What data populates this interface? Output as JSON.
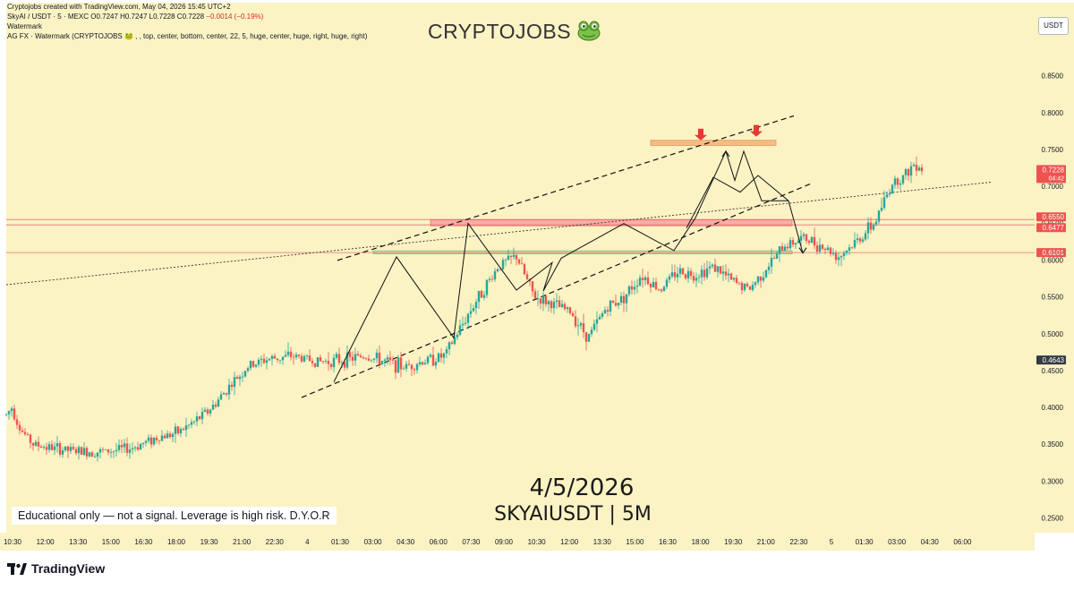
{
  "header": {
    "caption": "Cryptojobs created with TradingView.com, May 04, 2026 15:45 UTC+2",
    "symbol_line": "SkyAI / USDT · 5 · MEXC",
    "ohlc": {
      "o": "O0.7247",
      "h": "H0.7247",
      "l": "L0.7228",
      "c": "C0.7228",
      "chg": "−0.0014 (−0.19%)"
    },
    "watermark_label": "Watermark",
    "indicator_line": "AG FX · Watermark (CRYPTOJOBS 🐸 , , top, center, bottom, center, 22, 5, huge, center, huge, right, huge, right)"
  },
  "watermark": {
    "title": "CRYPTOJOBS",
    "icon": "frog-icon"
  },
  "currency_badge": "USDT",
  "footer": {
    "logo_text": "TradingView",
    "logo_icon": "tradingview-logo-icon"
  },
  "annotations": {
    "date": "4/5/2026",
    "symbol": "SKYAIUSDT | 5M",
    "disclaimer": "Educational only — not a signal. Leverage is high risk. D.Y.O.R"
  },
  "colors": {
    "background": "#fbf3c4",
    "up": "#26a69a",
    "down": "#ef5350",
    "supply_zone": "#f2b27a",
    "resistance_zone": "#f8a0a0",
    "support_zone": "#b6dfa5",
    "arrow": "#e53935"
  },
  "chart_data": {
    "type": "candlestick",
    "symbol": "SKYAIUSDT",
    "timeframe": "5",
    "exchange": "MEXC",
    "ylim": [
      0.23,
      0.88
    ],
    "y_ticks": [
      0.25,
      0.3,
      0.35,
      0.4,
      0.45,
      0.5,
      0.55,
      0.6,
      0.65,
      0.7,
      0.75,
      0.8,
      0.85
    ],
    "y_tick_labels": [
      "0.2500",
      "0.3000",
      "0.3500",
      "0.4000",
      "0.4500",
      "0.5000",
      "0.5500",
      "0.6000",
      "0.6500",
      "0.7000",
      "0.7500",
      "0.8000",
      "0.8500"
    ],
    "x_tick_labels": [
      "10:30",
      "12:00",
      "13:30",
      "15:00",
      "16:30",
      "18:00",
      "19:30",
      "21:00",
      "22:30",
      "4",
      "01:30",
      "03:00",
      "04:30",
      "06:00",
      "07:30",
      "09:00",
      "10:30",
      "12:00",
      "13:30",
      "15:00",
      "16:30",
      "18:00",
      "19:30",
      "21:00",
      "22:30",
      "5",
      "01:30",
      "03:00",
      "04:30",
      "06:00"
    ],
    "price_labels": [
      {
        "text": "0.7228",
        "value": 0.7228,
        "sub": "04:42",
        "kind": "last"
      },
      {
        "text": "0.6550",
        "value": 0.655,
        "kind": "level"
      },
      {
        "text": "0.6477",
        "value": 0.6477,
        "kind": "level"
      },
      {
        "text": "0.6101",
        "value": 0.6101,
        "kind": "level"
      },
      {
        "text": "0.4643",
        "value": 0.4643,
        "kind": "marker"
      }
    ],
    "levels": [
      0.655,
      0.6477,
      0.6101
    ],
    "price_path": [
      [
        0,
        0.39
      ],
      [
        3,
        0.4
      ],
      [
        8,
        0.37
      ],
      [
        15,
        0.35
      ],
      [
        25,
        0.345
      ],
      [
        40,
        0.34
      ],
      [
        55,
        0.34
      ],
      [
        70,
        0.345
      ],
      [
        85,
        0.36
      ],
      [
        95,
        0.365
      ],
      [
        105,
        0.38
      ],
      [
        115,
        0.4
      ],
      [
        125,
        0.43
      ],
      [
        135,
        0.455
      ],
      [
        145,
        0.465
      ],
      [
        160,
        0.47
      ],
      [
        175,
        0.462
      ],
      [
        190,
        0.465
      ],
      [
        200,
        0.47
      ],
      [
        212,
        0.462
      ],
      [
        222,
        0.455
      ],
      [
        232,
        0.462
      ],
      [
        245,
        0.47
      ],
      [
        260,
        0.535
      ],
      [
        275,
        0.592
      ],
      [
        285,
        0.605
      ],
      [
        295,
        0.55
      ],
      [
        305,
        0.54
      ],
      [
        315,
        0.53
      ],
      [
        325,
        0.495
      ],
      [
        335,
        0.535
      ],
      [
        345,
        0.55
      ],
      [
        355,
        0.58
      ],
      [
        365,
        0.56
      ],
      [
        375,
        0.585
      ],
      [
        385,
        0.58
      ],
      [
        395,
        0.592
      ],
      [
        405,
        0.572
      ],
      [
        415,
        0.56
      ],
      [
        425,
        0.59
      ],
      [
        435,
        0.62
      ],
      [
        445,
        0.63
      ],
      [
        455,
        0.62
      ],
      [
        465,
        0.605
      ],
      [
        475,
        0.625
      ],
      [
        485,
        0.65
      ],
      [
        495,
        0.705
      ],
      [
        502,
        0.715
      ],
      [
        508,
        0.733
      ],
      [
        512,
        0.723
      ]
    ],
    "zones": [
      {
        "name": "supply",
        "t": [
          360,
          430
        ],
        "y": [
          0.7555,
          0.7625
        ]
      },
      {
        "name": "resistance",
        "t": [
          237,
          439
        ],
        "y": [
          0.6465,
          0.6545
        ]
      },
      {
        "name": "support",
        "t": [
          205,
          439
        ],
        "y": [
          0.6085,
          0.6125
        ]
      }
    ],
    "channel": [
      {
        "p1": [
          185,
          0.5995
        ],
        "p2": [
          440,
          0.7957
        ],
        "style": "dashed"
      },
      {
        "p1": [
          165,
          0.4135
        ],
        "p2": [
          449,
          0.7032
        ],
        "style": "dashed"
      }
    ],
    "trendline": {
      "p1": [
        0,
        0.5665
      ],
      "p2": [
        550,
        0.7056
      ],
      "style": "dotted"
    },
    "path_lines": [
      [
        [
          183,
          0.4345
        ],
        [
          218,
          0.6043
        ],
        [
          250,
          0.4944
        ],
        [
          258,
          0.6496
        ],
        [
          285,
          0.5592
        ],
        [
          305,
          0.5964
        ],
        [
          300,
          0.5579
        ],
        [
          310,
          0.6025
        ],
        [
          345,
          0.6495
        ],
        [
          373,
          0.6128
        ],
        [
          385,
          0.6572
        ],
        [
          402,
          0.7476
        ],
        [
          407,
          0.7081
        ],
        [
          412,
          0.7477
        ],
        [
          422,
          0.6804
        ],
        [
          437,
          0.6804
        ],
        [
          445,
          0.6095
        ]
      ],
      [
        [
          380,
          0.6433
        ],
        [
          395,
          0.7123
        ],
        [
          410,
          0.6922
        ],
        [
          420,
          0.7148
        ],
        [
          437,
          0.6804
        ]
      ]
    ],
    "arrows": [
      {
        "t": 388,
        "y": 0.7625
      },
      {
        "t": 419,
        "y": 0.7675
      }
    ]
  }
}
